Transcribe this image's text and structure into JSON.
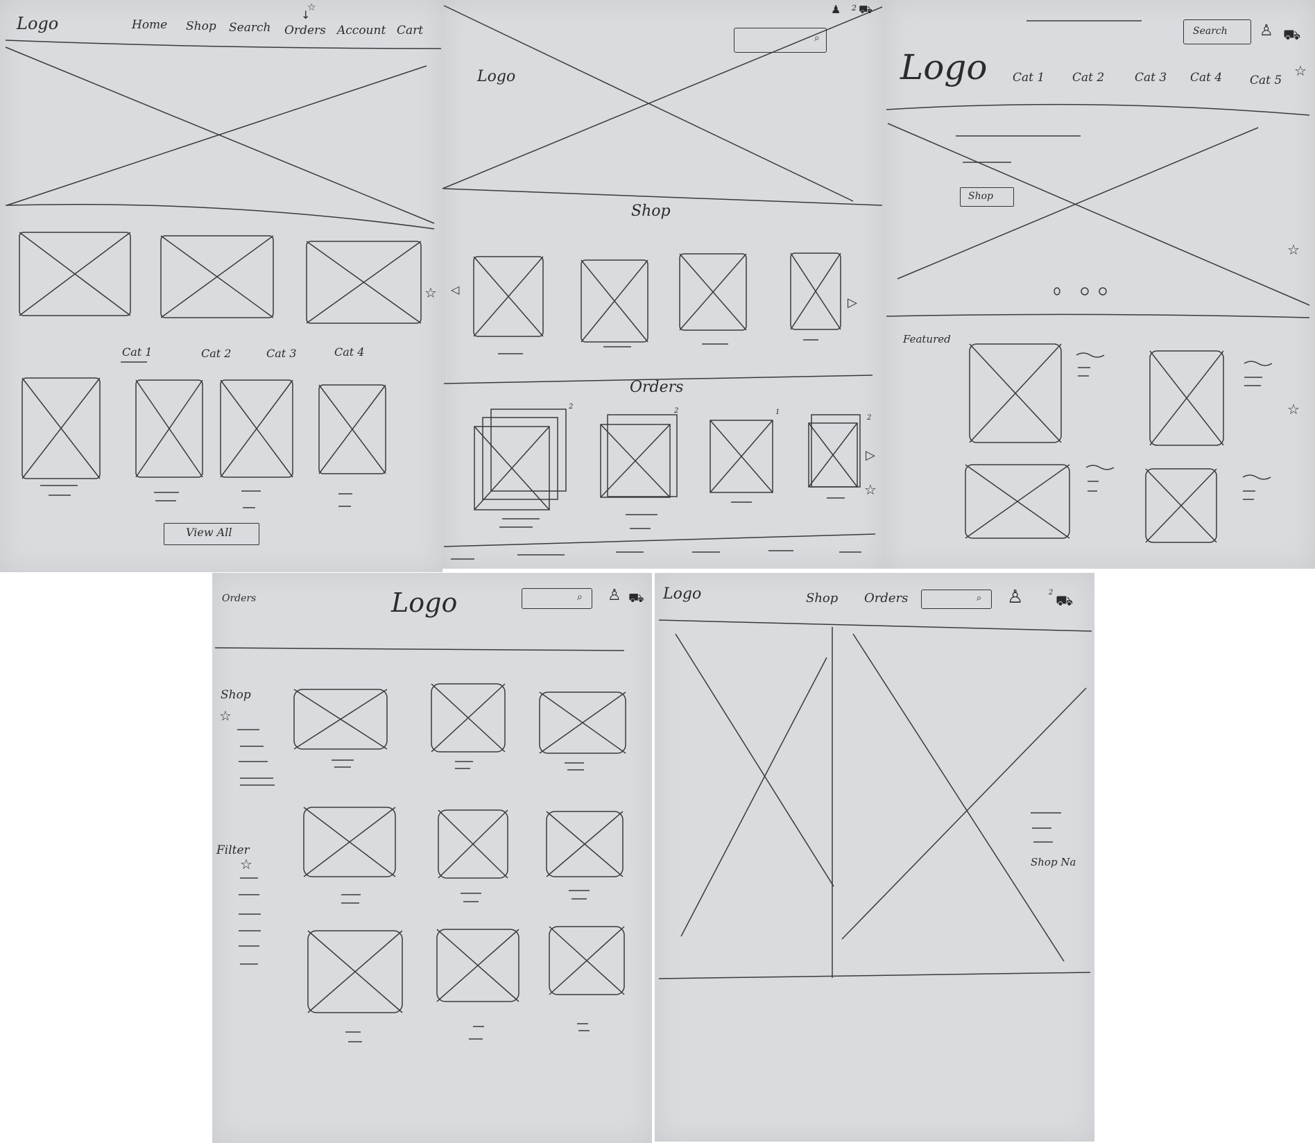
{
  "sketch1": {
    "logo": "Logo",
    "nav": [
      "Home",
      "Shop",
      "Search",
      "Orders",
      "Account",
      "Cart"
    ],
    "categories": [
      "Cat 1",
      "Cat 2",
      "Cat 3",
      "Cat 4"
    ],
    "view_all": "View All"
  },
  "sketch2": {
    "logo": "Logo",
    "cart_count": "2",
    "shop_heading": "Shop",
    "orders_heading": "Orders",
    "order_counts": [
      "2",
      "2",
      "1",
      "2"
    ]
  },
  "sketch3": {
    "logo": "Logo",
    "search_label": "Search",
    "categories": [
      "Cat 1",
      "Cat 2",
      "Cat 3",
      "Cat 4",
      "Cat 5"
    ],
    "hero_button": "Shop",
    "featured_heading": "Featured"
  },
  "sketch4": {
    "orders_link": "Orders",
    "logo": "Logo",
    "sidebar_shop": "Shop",
    "sidebar_filter": "Filter"
  },
  "sketch5": {
    "logo": "Logo",
    "nav": [
      "Shop",
      "Orders"
    ],
    "cart_count": "2",
    "shop_name": "Shop Na"
  },
  "icons": [
    "star-icon",
    "search-icon",
    "user-icon",
    "cart-icon",
    "arrow-left-icon",
    "arrow-right-icon"
  ]
}
